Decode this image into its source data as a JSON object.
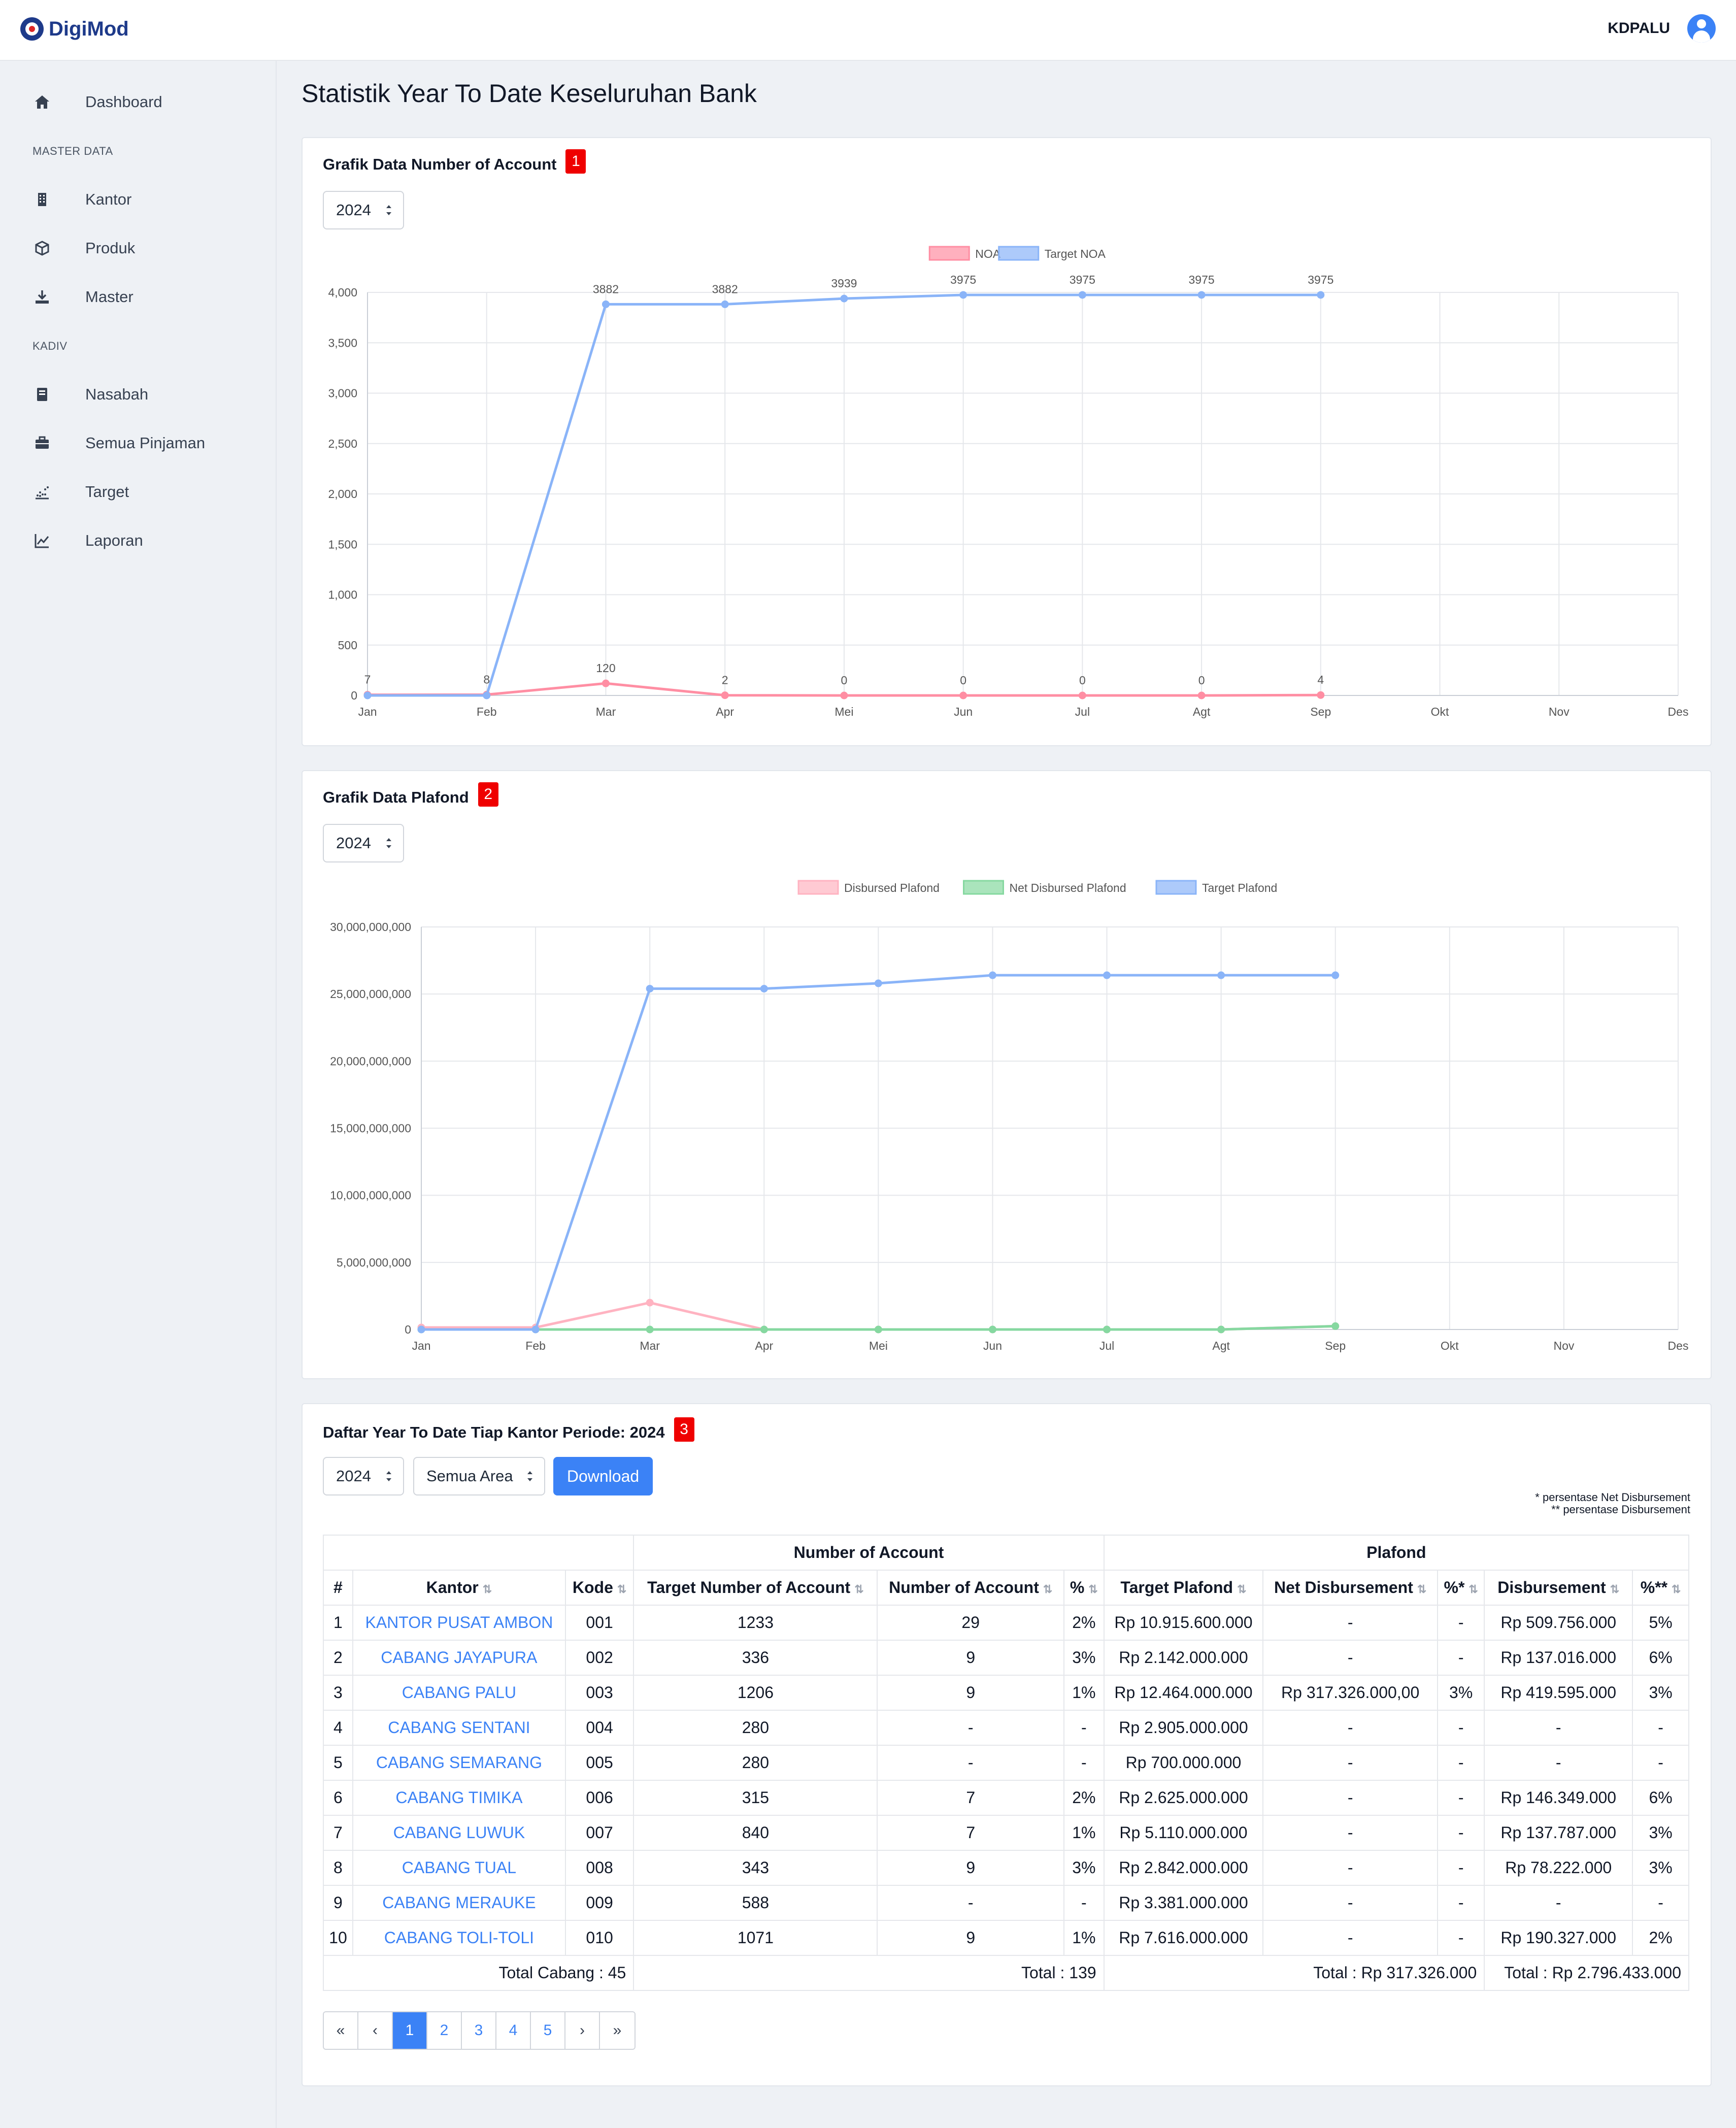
{
  "app": {
    "name": "DigiMod",
    "user": "KDPALU"
  },
  "sidebar": {
    "dashboard": "Dashboard",
    "section_master": "MASTER DATA",
    "kantor": "Kantor",
    "produk": "Produk",
    "master": "Master",
    "section_kadiv": "KADIV",
    "nasabah": "Nasabah",
    "semua_pinjaman": "Semua Pinjaman",
    "target": "Target",
    "laporan": "Laporan"
  },
  "page": {
    "title": "Statistik Year To Date Keseluruhan Bank"
  },
  "card_noa": {
    "title": "Grafik Data Number of Account",
    "badge": "1",
    "year": "2024"
  },
  "card_plafond": {
    "title": "Grafik Data Plafond",
    "badge": "2",
    "year": "2024"
  },
  "card_table": {
    "title": "Daftar Year To Date Tiap Kantor Periode: 2024",
    "badge": "3",
    "year": "2024",
    "area": "Semua Area",
    "download": "Download",
    "note1": "* persentase Net Disbursement",
    "note2": "** persentase Disbursement"
  },
  "chart_data": [
    {
      "type": "line",
      "categories": [
        "Jan",
        "Feb",
        "Mar",
        "Apr",
        "Mei",
        "Jun",
        "Jul",
        "Agt",
        "Sep",
        "Okt",
        "Nov",
        "Des"
      ],
      "series": [
        {
          "name": "NOA",
          "color": "#ff8ea3",
          "values": [
            7,
            8,
            120,
            2,
            0,
            0,
            0,
            0,
            4,
            null,
            null,
            null
          ]
        },
        {
          "name": "Target NOA",
          "color": "#8ab4f8",
          "values": [
            0,
            0,
            3882,
            3882,
            3939,
            3975,
            3975,
            3975,
            3975,
            null,
            null,
            null
          ]
        }
      ],
      "data_labels": [
        "7",
        "8",
        "120",
        "2",
        "0",
        "0",
        "0",
        "0",
        "4"
      ],
      "target_labels": [
        "3882",
        "3882",
        "3939",
        "3975",
        "3975",
        "3975",
        "3975"
      ],
      "yticks": [
        "4,000",
        "3,500",
        "3,000",
        "2,500",
        "2,000",
        "1,500",
        "1,000",
        "500",
        "0"
      ],
      "ylim": [
        0,
        4000
      ]
    },
    {
      "type": "line",
      "categories": [
        "Jan",
        "Feb",
        "Mar",
        "Apr",
        "Mei",
        "Jun",
        "Jul",
        "Agt",
        "Sep",
        "Okt",
        "Nov",
        "Des"
      ],
      "series": [
        {
          "name": "Disbursed Plafond",
          "color": "#ffb3c1",
          "values": [
            150000000,
            150000000,
            2000000000,
            0,
            0,
            0,
            0,
            0,
            250000000,
            null,
            null,
            null
          ]
        },
        {
          "name": "Net Disbursed Plafond",
          "color": "#86d8a0",
          "values": [
            0,
            0,
            0,
            0,
            0,
            0,
            0,
            0,
            250000000,
            null,
            null,
            null
          ]
        },
        {
          "name": "Target Plafond",
          "color": "#8ab4f8",
          "values": [
            0,
            0,
            25400000000,
            25400000000,
            25800000000,
            26400000000,
            26400000000,
            26400000000,
            26400000000,
            null,
            null,
            null
          ]
        }
      ],
      "yticks": [
        "30,000,000,000",
        "25,000,000,000",
        "20,000,000,000",
        "15,000,000,000",
        "10,000,000,000",
        "5,000,000,000",
        "0"
      ],
      "ylim": [
        0,
        30000000000
      ]
    }
  ],
  "table": {
    "group_noa": "Number of Account",
    "group_plafond": "Plafond",
    "headers": [
      "#",
      "Kantor",
      "Kode",
      "Target Number of Account",
      "Number of Account",
      "%",
      "Target Plafond",
      "Net Disbursement",
      "%*",
      "Disbursement",
      "%**"
    ],
    "rows": [
      [
        "1",
        "KANTOR PUSAT AMBON",
        "001",
        "1233",
        "29",
        "2%",
        "Rp 10.915.600.000",
        "-",
        "-",
        "Rp 509.756.000",
        "5%"
      ],
      [
        "2",
        "CABANG JAYAPURA",
        "002",
        "336",
        "9",
        "3%",
        "Rp 2.142.000.000",
        "-",
        "-",
        "Rp 137.016.000",
        "6%"
      ],
      [
        "3",
        "CABANG PALU",
        "003",
        "1206",
        "9",
        "1%",
        "Rp 12.464.000.000",
        "Rp 317.326.000,00",
        "3%",
        "Rp 419.595.000",
        "3%"
      ],
      [
        "4",
        "CABANG SENTANI",
        "004",
        "280",
        "-",
        "-",
        "Rp 2.905.000.000",
        "-",
        "-",
        "-",
        "-"
      ],
      [
        "5",
        "CABANG SEMARANG",
        "005",
        "280",
        "-",
        "-",
        "Rp 700.000.000",
        "-",
        "-",
        "-",
        "-"
      ],
      [
        "6",
        "CABANG TIMIKA",
        "006",
        "315",
        "7",
        "2%",
        "Rp 2.625.000.000",
        "-",
        "-",
        "Rp 146.349.000",
        "6%"
      ],
      [
        "7",
        "CABANG LUWUK",
        "007",
        "840",
        "7",
        "1%",
        "Rp 5.110.000.000",
        "-",
        "-",
        "Rp 137.787.000",
        "3%"
      ],
      [
        "8",
        "CABANG TUAL",
        "008",
        "343",
        "9",
        "3%",
        "Rp 2.842.000.000",
        "-",
        "-",
        "Rp 78.222.000",
        "3%"
      ],
      [
        "9",
        "CABANG MERAUKE",
        "009",
        "588",
        "-",
        "-",
        "Rp 3.381.000.000",
        "-",
        "-",
        "-",
        "-"
      ],
      [
        "10",
        "CABANG TOLI-TOLI",
        "010",
        "1071",
        "9",
        "1%",
        "Rp 7.616.000.000",
        "-",
        "-",
        "Rp 190.327.000",
        "2%"
      ]
    ],
    "total_cabang": "Total Cabang : 45",
    "total_noa": "Total : 139",
    "total_net": "Total : Rp 317.326.000",
    "total_disb": "Total : Rp 2.796.433.000"
  },
  "pagination": [
    "«",
    "‹",
    "1",
    "2",
    "3",
    "4",
    "5",
    "›",
    "»"
  ]
}
